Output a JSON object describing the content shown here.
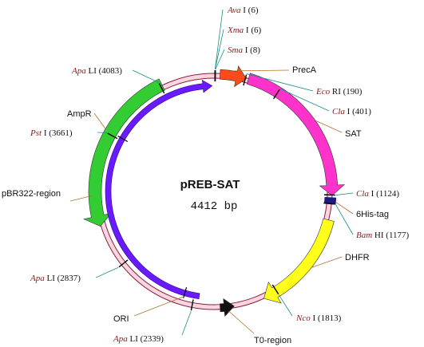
{
  "plasmid": {
    "name": "pREB-SAT",
    "size_label": "4412 bp",
    "length_bp": 4412
  },
  "features": [
    {
      "label": "PrecA",
      "color": "#ff4a1a",
      "direction": "cw"
    },
    {
      "label": "SAT",
      "color": "#ff33cc",
      "direction": "cw"
    },
    {
      "label": "6His-tag",
      "color": "#1a1a80",
      "direction": "cw"
    },
    {
      "label": "DHFR",
      "color": "#ffff1a",
      "direction": "cw"
    },
    {
      "label": "T0-region",
      "color": "#111111",
      "direction": "ccw"
    },
    {
      "label": "ORI",
      "color": "#6a1aff",
      "direction": "cw"
    },
    {
      "label": "pBR322-region",
      "color": "#f4c9d9",
      "direction": "none"
    },
    {
      "label": "AmpR",
      "color": "#33cc33",
      "direction": "ccw"
    }
  ],
  "sites": [
    {
      "name": "Ava",
      "suffix": " I",
      "pos": "(6)",
      "bp": 6
    },
    {
      "name": "Xma",
      "suffix": " I",
      "pos": "(6)",
      "bp": 6
    },
    {
      "name": "Sma",
      "suffix": " I",
      "pos": "(8)",
      "bp": 8
    },
    {
      "name": "Eco",
      "suffix": " RI",
      "pos": "(190)",
      "bp": 190
    },
    {
      "name": "Cla",
      "suffix": " I",
      "pos": "(401)",
      "bp": 401
    },
    {
      "name": "Cla",
      "suffix": " I",
      "pos": "(1124)",
      "bp": 1124
    },
    {
      "name": "Bam",
      "suffix": " HI",
      "pos": "(1177)",
      "bp": 1177
    },
    {
      "name": "Nco",
      "suffix": " I",
      "pos": "(1813)",
      "bp": 1813
    },
    {
      "name": "Apa",
      "suffix": " LI",
      "pos": "(2339)",
      "bp": 2339
    },
    {
      "name": "Apa",
      "suffix": " LI",
      "pos": "(2837)",
      "bp": 2837
    },
    {
      "name": "Pst",
      "suffix": " I",
      "pos": "(3661)",
      "bp": 3661
    },
    {
      "name": "Apa",
      "suffix": " LI",
      "pos": "(4083)",
      "bp": 4083
    }
  ],
  "colors": {
    "backbone": "#8b1a3a",
    "backbone_fill": "#f7d6e0",
    "leader_green": "#1a8c8c",
    "leader_brown": "#b07030",
    "site_name": "#8b1a1a"
  }
}
